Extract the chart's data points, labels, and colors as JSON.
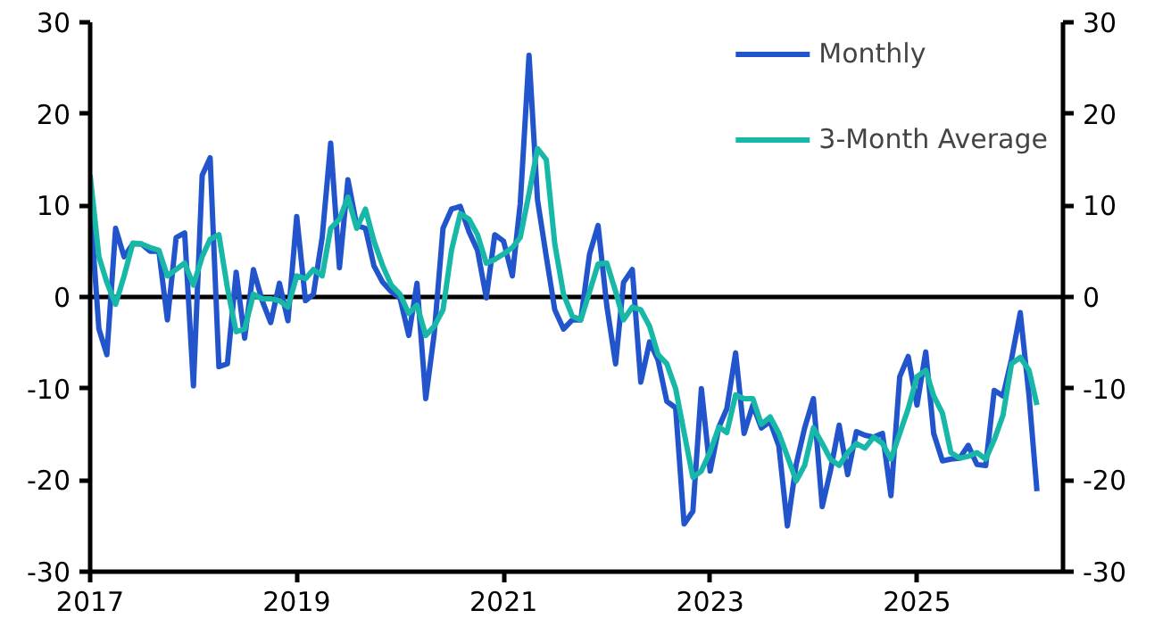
{
  "chart_data": {
    "type": "line",
    "x": [
      "2017-01",
      "2017-02",
      "2017-03",
      "2017-04",
      "2017-05",
      "2017-06",
      "2017-07",
      "2017-08",
      "2017-09",
      "2017-10",
      "2017-11",
      "2017-12",
      "2018-01",
      "2018-02",
      "2018-03",
      "2018-04",
      "2018-05",
      "2018-06",
      "2018-07",
      "2018-08",
      "2018-09",
      "2018-10",
      "2018-11",
      "2018-12",
      "2019-01",
      "2019-02",
      "2019-03",
      "2019-04",
      "2019-05",
      "2019-06",
      "2019-07",
      "2019-08",
      "2019-09",
      "2019-10",
      "2019-11",
      "2019-12",
      "2020-01",
      "2020-02",
      "2020-03",
      "2020-04",
      "2020-05",
      "2020-06",
      "2020-07",
      "2020-08",
      "2020-09",
      "2020-10",
      "2020-11",
      "2020-12",
      "2021-01",
      "2021-02",
      "2021-03",
      "2021-04",
      "2021-05",
      "2021-06",
      "2021-07",
      "2021-08",
      "2021-09",
      "2021-10",
      "2021-11",
      "2021-12",
      "2022-01",
      "2022-02",
      "2022-03",
      "2022-04",
      "2022-05",
      "2022-06",
      "2022-07",
      "2022-08",
      "2022-09",
      "2022-10",
      "2022-11",
      "2022-12",
      "2023-01",
      "2023-02",
      "2023-03",
      "2023-04",
      "2023-05",
      "2023-06",
      "2023-07",
      "2023-08",
      "2023-09",
      "2023-10",
      "2023-11",
      "2023-12",
      "2024-01",
      "2024-02",
      "2024-03",
      "2024-04",
      "2024-05",
      "2024-06",
      "2024-07",
      "2024-08",
      "2024-09",
      "2024-10",
      "2024-11",
      "2024-12",
      "2025-01",
      "2025-02",
      "2025-03",
      "2025-04",
      "2025-05",
      "2025-06",
      "2025-07",
      "2025-08",
      "2025-09",
      "2025-10",
      "2025-11",
      "2025-12",
      "2026-01",
      "2026-02",
      "2026-03"
    ],
    "series": [
      {
        "name": "Monthly",
        "color": "#2255cc",
        "values": [
          10,
          -3.5,
          -6.3,
          7.5,
          4.4,
          5.8,
          5.8,
          5,
          5,
          -2.5,
          6.5,
          7,
          -9.7,
          13.3,
          15.2,
          -7.6,
          -7.3,
          2.7,
          -4.5,
          3,
          -0.4,
          -2.8,
          1.5,
          -2.6,
          8.8,
          -0.4,
          0.3,
          6.5,
          16.8,
          3.2,
          12.8,
          7.8,
          7.5,
          3.4,
          1.6,
          0.6,
          -0.1,
          -4.2,
          1.5,
          -11.1,
          -4,
          7.5,
          9.6,
          9.9,
          7.1,
          5.1,
          -0.1,
          6.8,
          6.1,
          2.3,
          10.2,
          26.4,
          10.6,
          4.4,
          -1.4,
          -3.5,
          -2.5,
          -2.5,
          4.7,
          7.8,
          -1,
          -7.3,
          1.6,
          3,
          -9.3,
          -4.9,
          -6.9,
          -11.4,
          -12.1,
          -24.8,
          -23.4,
          -10,
          -19,
          -14.2,
          -12.2,
          -6.1,
          -14.9,
          -11.8,
          -14.3,
          -13.6,
          -16.3,
          -25,
          -18.3,
          -14.3,
          -11.1,
          -22.9,
          -19,
          -14,
          -19.4,
          -14.7,
          -15.1,
          -15.3,
          -14.9,
          -21.7,
          -8.7,
          -6.5,
          -11.8,
          -6,
          -14.9,
          -17.9,
          -17.7,
          -17.6,
          -16.2,
          -18.3,
          -18.4,
          -10.2,
          -10.8,
          -6.8,
          -1.7,
          -10.8,
          -21.2
        ]
      },
      {
        "name": "3-Month Average",
        "color": "#18b8a8",
        "values": [
          13.3,
          4.4,
          1.6,
          -0.8,
          2.3,
          5.9,
          5.8,
          5.4,
          5.1,
          2.3,
          3,
          3.7,
          1.3,
          4.4,
          6.3,
          6.8,
          1,
          -3.8,
          -3.5,
          0.3,
          -0.2,
          -0.2,
          -0.4,
          -1.1,
          2.3,
          2,
          3,
          2.3,
          7.5,
          8.5,
          10.9,
          7.5,
          9.6,
          6.1,
          3.4,
          1.3,
          0.3,
          -1.8,
          -0.9,
          -4.2,
          -3.2,
          -1.4,
          5.1,
          9.1,
          8.5,
          6.8,
          3.7,
          4.1,
          4.7,
          5.4,
          6.5,
          11.3,
          16.2,
          15,
          5.8,
          0.3,
          -2.1,
          -2.5,
          0.6,
          3.6,
          3.7,
          0.6,
          -2.5,
          -1.1,
          -1.4,
          -3.2,
          -6.3,
          -7.3,
          -10,
          -14.8,
          -19.7,
          -19,
          -16.9,
          -14.2,
          -14.8,
          -10.7,
          -11.1,
          -11.1,
          -13.9,
          -13.1,
          -14.9,
          -17.4,
          -20.1,
          -18.4,
          -14.3,
          -16,
          -17.7,
          -18.4,
          -17,
          -16,
          -16.5,
          -15.3,
          -16,
          -17.7,
          -14.9,
          -12.2,
          -8.7,
          -8,
          -10.8,
          -12.7,
          -17,
          -17.6,
          -17.4,
          -17,
          -17.7,
          -15.6,
          -12.9,
          -7.3,
          -6.6,
          -8,
          -11.8
        ]
      }
    ],
    "xlim": [
      "2017-01",
      "2026-06"
    ],
    "xticks": [
      "2017",
      "2019",
      "2021",
      "2023",
      "2025"
    ],
    "ylim": [
      -30,
      30
    ],
    "yticks": [
      -30,
      -20,
      -10,
      0,
      10,
      20,
      30
    ],
    "y2lim": [
      -30,
      30
    ],
    "y2ticks": [
      -30,
      -20,
      -10,
      0,
      10,
      20,
      30
    ],
    "ref_lines": [
      {
        "axis": "y",
        "value": 0,
        "color": "#000000"
      }
    ],
    "grid": false,
    "legend": "top right",
    "line_style": "solid",
    "marker": "none"
  }
}
